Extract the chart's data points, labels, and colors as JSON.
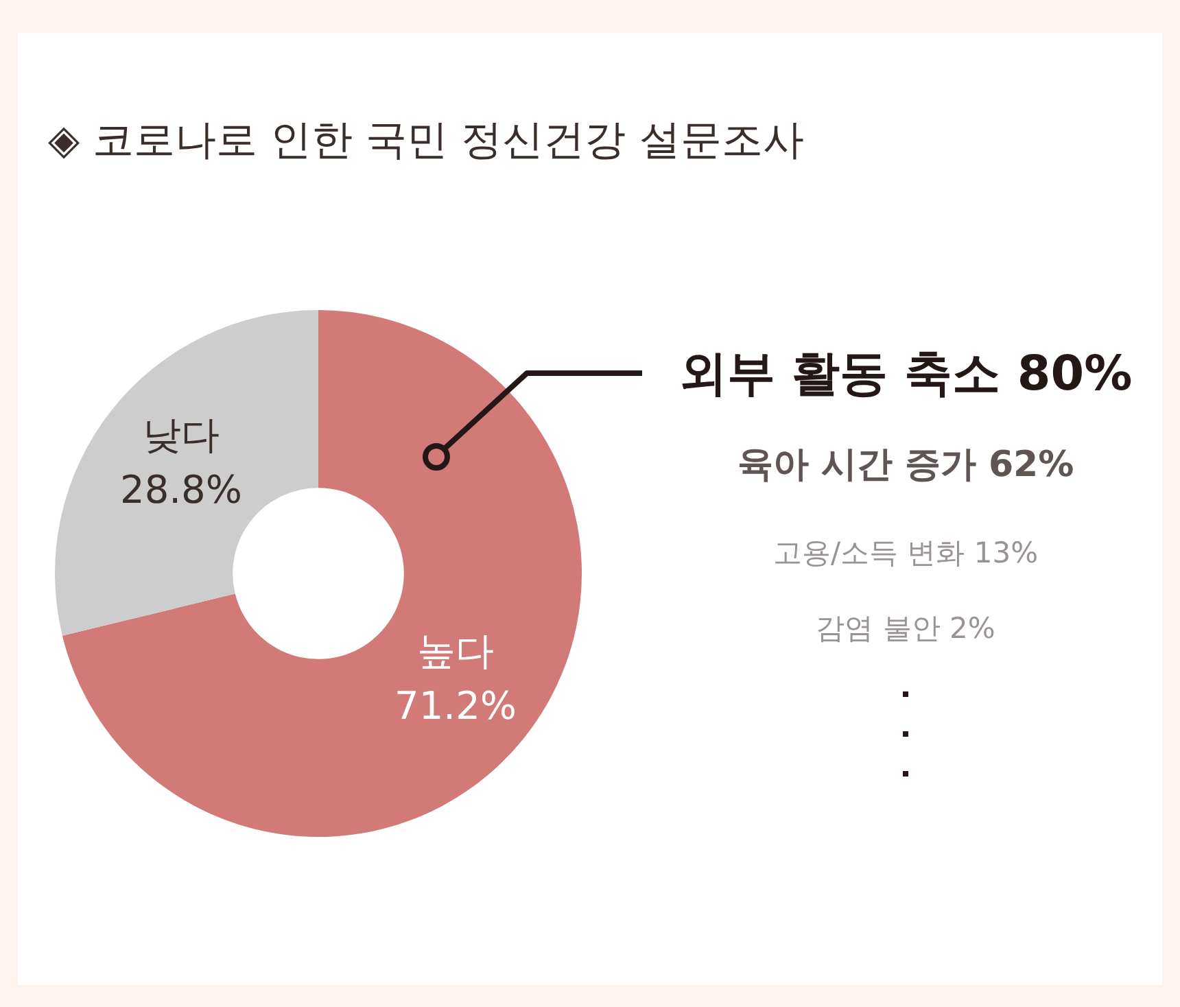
{
  "chart_data": {
    "type": "donut",
    "title": "◈ 코로나로 인한 국민 정신건강 설문조사",
    "categories": [
      "높다",
      "낮다"
    ],
    "values": [
      71.2,
      28.8
    ],
    "colors": [
      "#d17a77",
      "#cdcdcd"
    ],
    "value_labels": [
      "71.2%",
      "28.8%"
    ],
    "annotations": [
      "외부 활동 축소 80%",
      "육아 시간 증가 62%",
      "고용/소득 변화 13%",
      "감염 불안 2%"
    ]
  }
}
